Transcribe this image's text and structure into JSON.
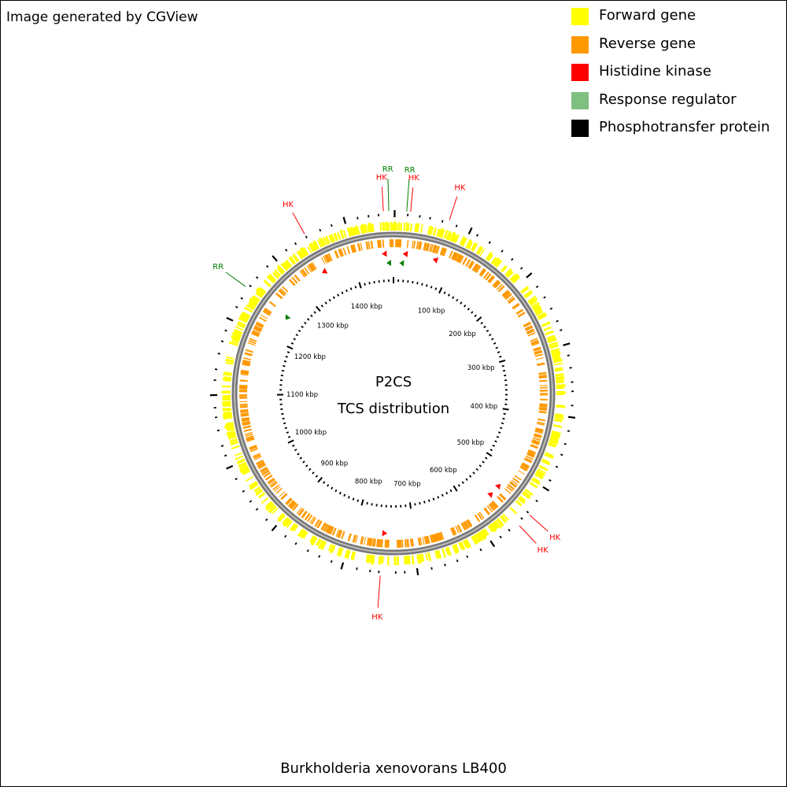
{
  "header": {
    "credit": "Image generated by CGView"
  },
  "legend": [
    {
      "label": "Forward gene",
      "color": "#ffff00"
    },
    {
      "label": "Reverse gene",
      "color": "#ff9900"
    },
    {
      "label": "Histidine kinase",
      "color": "#ff0000"
    },
    {
      "label": "Response regulator",
      "color": "#7fbf7f"
    },
    {
      "label": "Phosphotransfer protein",
      "color": "#000000"
    }
  ],
  "map": {
    "center_title": "P2CS",
    "center_subtitle": "TCS distribution",
    "genome_length_kbp": 1470,
    "ruler_labels": [
      "100 kbp",
      "200 kbp",
      "300 kbp",
      "400 kbp",
      "500 kbp",
      "600 kbp",
      "700 kbp",
      "800 kbp",
      "900 kbp",
      "1000 kbp",
      "1100 kbp",
      "1200 kbp",
      "1300 kbp",
      "1400 kbp"
    ],
    "tcs_features": [
      {
        "label": "HK",
        "type": "Histidine kinase",
        "position_kbp": 1457,
        "color": "#ff0000"
      },
      {
        "label": "RR",
        "type": "Response regulator",
        "position_kbp": 1464,
        "color": "#008000"
      },
      {
        "label": "RR",
        "type": "Response regulator",
        "position_kbp": 17,
        "color": "#008000"
      },
      {
        "label": "HK",
        "type": "Histidine kinase",
        "position_kbp": 22,
        "color": "#ff0000"
      },
      {
        "label": "HK",
        "type": "Histidine kinase",
        "position_kbp": 73,
        "color": "#ff0000"
      },
      {
        "label": "HK",
        "type": "Histidine kinase",
        "position_kbp": 538,
        "color": "#ff0000"
      },
      {
        "label": "HK",
        "type": "Histidine kinase",
        "position_kbp": 557,
        "color": "#ff0000"
      },
      {
        "label": "HK",
        "type": "Histidine kinase",
        "position_kbp": 752,
        "color": "#ff0000"
      },
      {
        "label": "HK",
        "type": "Histidine kinase",
        "position_kbp": 1351,
        "color": "#ff0000"
      },
      {
        "label": "RR",
        "type": "Response regulator",
        "position_kbp": 1249,
        "color": "#008000"
      }
    ]
  },
  "footer": {
    "organism": "Burkholderia xenovorans LB400"
  }
}
